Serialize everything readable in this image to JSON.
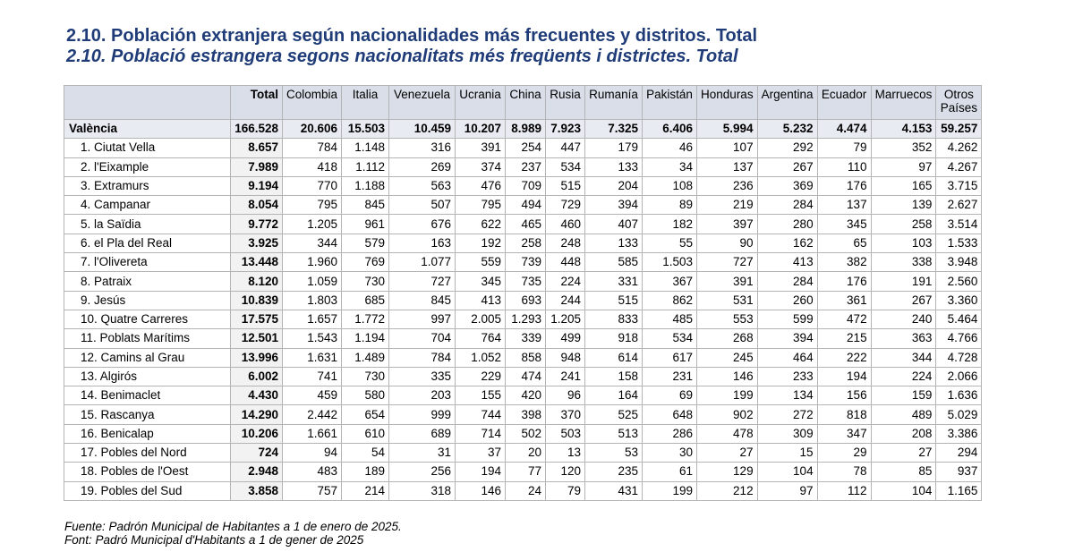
{
  "title_es": "2.10. Población extranjera según nacionalidades más frecuentes y distritos. Total",
  "title_ca": "2.10. Població estrangera segons nacionalitats més freqüents i districtes. Total",
  "columns": {
    "total": "Total",
    "c1": "Colombia",
    "c2": "Italia",
    "c3": "Venezuela",
    "c4": "Ucrania",
    "c5": "China",
    "c6": "Rusia",
    "c7": "Rumanía",
    "c8": "Pakistán",
    "c9": "Honduras",
    "c10": "Argentina",
    "c11": "Ecuador",
    "c12": "Marruecos",
    "otros_line1": "Otros",
    "otros_line2": "Países"
  },
  "rows": [
    {
      "name": "València",
      "total": "166.528",
      "v": [
        "20.606",
        "15.503",
        "10.459",
        "10.207",
        "8.989",
        "7.923",
        "7.325",
        "6.406",
        "5.994",
        "5.232",
        "4.474",
        "4.153",
        "59.257"
      ]
    },
    {
      "name": "1. Ciutat Vella",
      "total": "8.657",
      "v": [
        "784",
        "1.148",
        "316",
        "391",
        "254",
        "447",
        "179",
        "46",
        "107",
        "292",
        "79",
        "352",
        "4.262"
      ]
    },
    {
      "name": "2. l'Eixample",
      "total": "7.989",
      "v": [
        "418",
        "1.112",
        "269",
        "374",
        "237",
        "534",
        "133",
        "34",
        "137",
        "267",
        "110",
        "97",
        "4.267"
      ]
    },
    {
      "name": "3. Extramurs",
      "total": "9.194",
      "v": [
        "770",
        "1.188",
        "563",
        "476",
        "709",
        "515",
        "204",
        "108",
        "236",
        "369",
        "176",
        "165",
        "3.715"
      ]
    },
    {
      "name": "4. Campanar",
      "total": "8.054",
      "v": [
        "795",
        "845",
        "507",
        "795",
        "494",
        "729",
        "394",
        "89",
        "219",
        "284",
        "137",
        "139",
        "2.627"
      ]
    },
    {
      "name": "5. la Saïdia",
      "total": "9.772",
      "v": [
        "1.205",
        "961",
        "676",
        "622",
        "465",
        "460",
        "407",
        "182",
        "397",
        "280",
        "345",
        "258",
        "3.514"
      ]
    },
    {
      "name": "6. el Pla del Real",
      "total": "3.925",
      "v": [
        "344",
        "579",
        "163",
        "192",
        "258",
        "248",
        "133",
        "55",
        "90",
        "162",
        "65",
        "103",
        "1.533"
      ]
    },
    {
      "name": "7. l'Olivereta",
      "total": "13.448",
      "v": [
        "1.960",
        "769",
        "1.077",
        "559",
        "739",
        "448",
        "585",
        "1.503",
        "727",
        "413",
        "382",
        "338",
        "3.948"
      ]
    },
    {
      "name": "8. Patraix",
      "total": "8.120",
      "v": [
        "1.059",
        "730",
        "727",
        "345",
        "735",
        "224",
        "331",
        "367",
        "391",
        "284",
        "176",
        "191",
        "2.560"
      ]
    },
    {
      "name": "9. Jesús",
      "total": "10.839",
      "v": [
        "1.803",
        "685",
        "845",
        "413",
        "693",
        "244",
        "515",
        "862",
        "531",
        "260",
        "361",
        "267",
        "3.360"
      ]
    },
    {
      "name": "10. Quatre Carreres",
      "total": "17.575",
      "v": [
        "1.657",
        "1.772",
        "997",
        "2.005",
        "1.293",
        "1.205",
        "833",
        "485",
        "553",
        "599",
        "472",
        "240",
        "5.464"
      ]
    },
    {
      "name": "11. Poblats Marítims",
      "total": "12.501",
      "v": [
        "1.543",
        "1.194",
        "704",
        "764",
        "339",
        "499",
        "918",
        "534",
        "268",
        "394",
        "215",
        "363",
        "4.766"
      ]
    },
    {
      "name": "12. Camins al Grau",
      "total": "13.996",
      "v": [
        "1.631",
        "1.489",
        "784",
        "1.052",
        "858",
        "948",
        "614",
        "617",
        "245",
        "464",
        "222",
        "344",
        "4.728"
      ]
    },
    {
      "name": "13. Algirós",
      "total": "6.002",
      "v": [
        "741",
        "730",
        "335",
        "229",
        "474",
        "241",
        "158",
        "231",
        "146",
        "233",
        "194",
        "224",
        "2.066"
      ]
    },
    {
      "name": "14. Benimaclet",
      "total": "4.430",
      "v": [
        "459",
        "580",
        "203",
        "155",
        "420",
        "96",
        "164",
        "69",
        "199",
        "134",
        "156",
        "159",
        "1.636"
      ]
    },
    {
      "name": "15. Rascanya",
      "total": "14.290",
      "v": [
        "2.442",
        "654",
        "999",
        "744",
        "398",
        "370",
        "525",
        "648",
        "902",
        "272",
        "818",
        "489",
        "5.029"
      ]
    },
    {
      "name": "16. Benicalap",
      "total": "10.206",
      "v": [
        "1.661",
        "610",
        "689",
        "714",
        "502",
        "503",
        "513",
        "286",
        "478",
        "309",
        "347",
        "208",
        "3.386"
      ]
    },
    {
      "name": "17. Pobles del Nord",
      "total": "724",
      "v": [
        "94",
        "54",
        "31",
        "37",
        "20",
        "13",
        "53",
        "30",
        "27",
        "15",
        "29",
        "27",
        "294"
      ]
    },
    {
      "name": "18. Pobles de l'Oest",
      "total": "2.948",
      "v": [
        "483",
        "189",
        "256",
        "194",
        "77",
        "120",
        "235",
        "61",
        "129",
        "104",
        "78",
        "85",
        "937"
      ]
    },
    {
      "name": "19. Pobles del Sud",
      "total": "3.858",
      "v": [
        "757",
        "214",
        "318",
        "146",
        "24",
        "79",
        "431",
        "199",
        "212",
        "97",
        "112",
        "104",
        "1.165"
      ]
    }
  ],
  "source_es": "Fuente: Padrón Municipal de Habitantes a 1 de enero de 2025.",
  "source_ca": "Font: Padró Municipal d'Habitants a 1 de gener de 2025"
}
